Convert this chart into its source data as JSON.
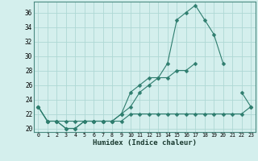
{
  "title": "",
  "xlabel": "Humidex (Indice chaleur)",
  "x": [
    0,
    1,
    2,
    3,
    4,
    5,
    6,
    7,
    8,
    9,
    10,
    11,
    12,
    13,
    14,
    15,
    16,
    17,
    18,
    19,
    20,
    21,
    22,
    23
  ],
  "line1": [
    23,
    21,
    21,
    20,
    20,
    21,
    21,
    21,
    21,
    22,
    25,
    26,
    27,
    27,
    29,
    35,
    36,
    37,
    35,
    33,
    29,
    null,
    25,
    23
  ],
  "line2": [
    23,
    21,
    21,
    20,
    20,
    21,
    21,
    21,
    21,
    22,
    23,
    25,
    26,
    27,
    27,
    28,
    28,
    29,
    null,
    null,
    null,
    null,
    null,
    null
  ],
  "line3": [
    23,
    21,
    21,
    21,
    21,
    21,
    21,
    21,
    21,
    21,
    22,
    22,
    22,
    22,
    22,
    22,
    22,
    22,
    22,
    22,
    22,
    22,
    22,
    23
  ],
  "bg_color": "#d4efed",
  "grid_color": "#aed8d4",
  "line_color": "#2e7d6e",
  "ylim": [
    19.5,
    37.5
  ],
  "yticks": [
    20,
    22,
    24,
    26,
    28,
    30,
    32,
    34,
    36
  ],
  "xticks": [
    0,
    1,
    2,
    3,
    4,
    5,
    6,
    7,
    8,
    9,
    10,
    11,
    12,
    13,
    14,
    15,
    16,
    17,
    18,
    19,
    20,
    21,
    22,
    23
  ],
  "xlim": [
    -0.5,
    23.5
  ]
}
